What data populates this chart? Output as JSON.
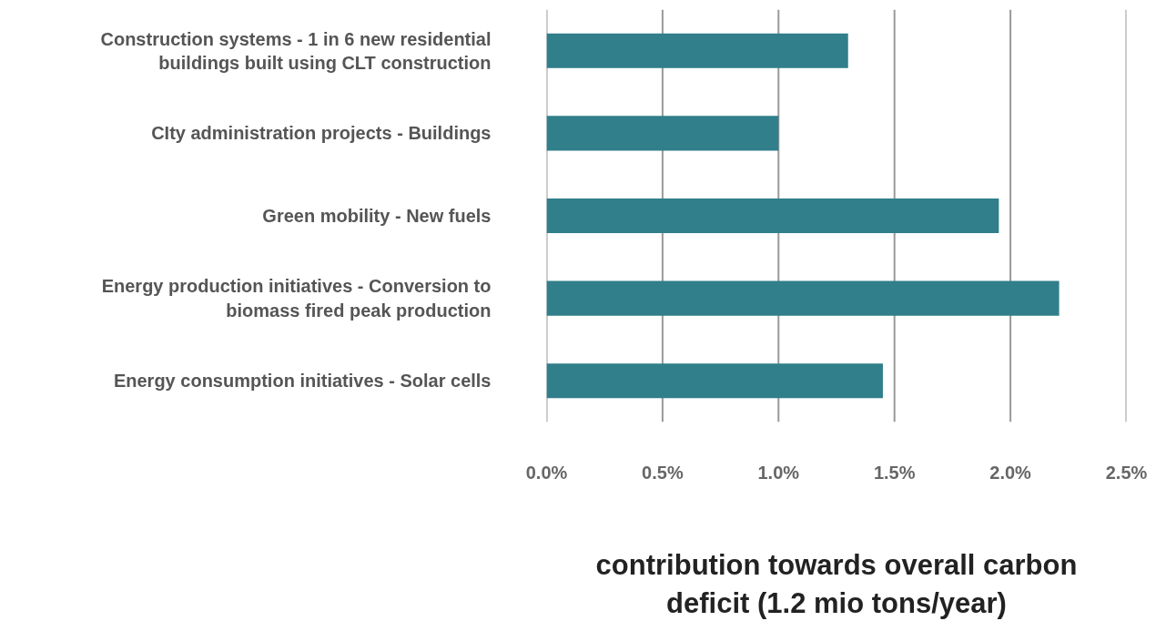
{
  "chart_data": {
    "type": "bar",
    "orientation": "horizontal",
    "categories": [
      "Construction systems - 1 in 6 new residential buildings built using CLT construction",
      "CIty administration projects - Buildings",
      "Green mobility - New fuels",
      "Energy production initiatives - Conversion to biomass fired peak production",
      "Energy consumption initiatives - Solar cells"
    ],
    "values": [
      1.3,
      1.0,
      1.95,
      2.21,
      1.45
    ],
    "color": "#307f8b",
    "xlim": [
      0,
      2.5
    ],
    "xticks": [
      {
        "value": 0,
        "label": "0.0%"
      },
      {
        "value": 0.5,
        "label": "0.5%"
      },
      {
        "value": 1.0,
        "label": "1.0%"
      },
      {
        "value": 1.5,
        "label": "1.5%"
      },
      {
        "value": 2.0,
        "label": "2.0%"
      },
      {
        "value": 2.5,
        "label": "2.5%"
      }
    ],
    "xlabel": "contribution towards overall carbon deficit (1.2 mio tons/year)",
    "grid": "x"
  }
}
